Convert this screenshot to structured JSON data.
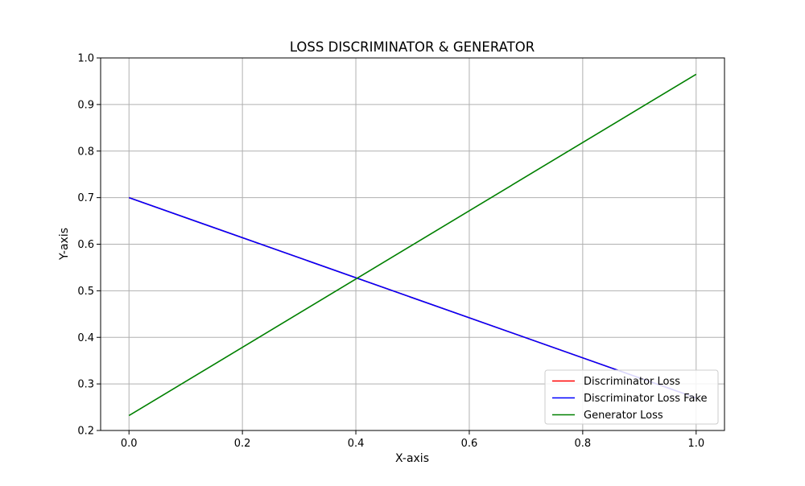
{
  "chart_data": {
    "type": "line",
    "title": "LOSS DISCRIMINATOR & GENERATOR",
    "xlabel": "X-axis",
    "ylabel": "Y-axis",
    "xlim": [
      -0.05,
      1.05
    ],
    "ylim": [
      0.2,
      1.0
    ],
    "xticks": [
      0.0,
      0.2,
      0.4,
      0.6,
      0.8,
      1.0
    ],
    "xtick_labels": [
      "0.0",
      "0.2",
      "0.4",
      "0.6",
      "0.8",
      "1.0"
    ],
    "yticks": [
      0.2,
      0.3,
      0.4,
      0.5,
      0.6,
      0.7,
      0.8,
      0.9,
      1.0
    ],
    "ytick_labels": [
      "0.2",
      "0.3",
      "0.4",
      "0.5",
      "0.6",
      "0.7",
      "0.8",
      "0.9",
      "1.0"
    ],
    "grid": true,
    "legend_position": "lower-right",
    "series": [
      {
        "name": "Discriminator Loss",
        "color": "#ff0000",
        "x": [
          0.0,
          1.0
        ],
        "y": [
          0.7,
          0.27
        ]
      },
      {
        "name": "Discriminator Loss Fake",
        "color": "#0000ff",
        "x": [
          0.0,
          1.0
        ],
        "y": [
          0.7,
          0.27
        ]
      },
      {
        "name": "Generator Loss",
        "color": "#008000",
        "x": [
          0.0,
          1.0
        ],
        "y": [
          0.232,
          0.965
        ]
      }
    ]
  }
}
